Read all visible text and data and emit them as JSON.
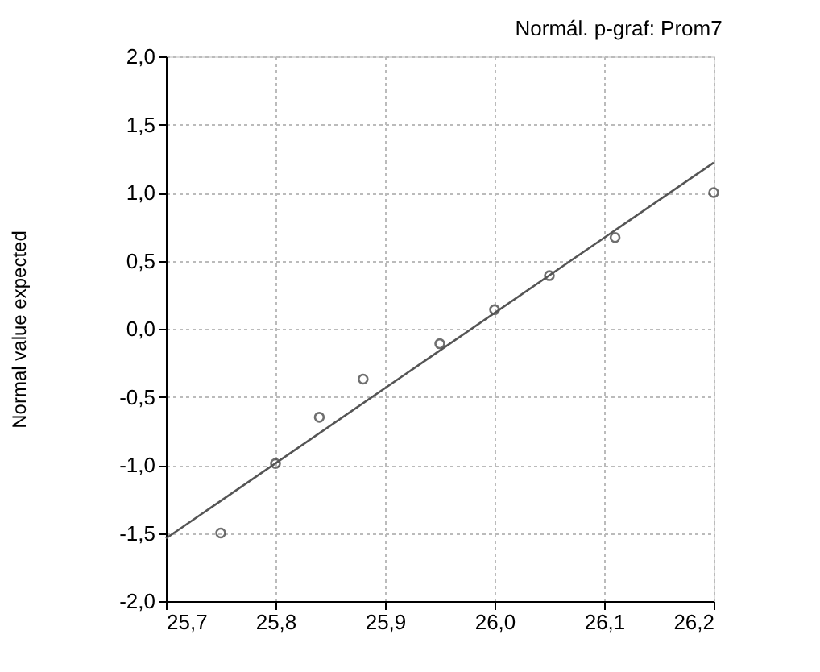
{
  "chart_data": {
    "type": "scatter",
    "title": "Normál. p-graf: Prom7",
    "ylabel": "Normal value expected",
    "x": [
      25.75,
      25.8,
      25.84,
      25.88,
      25.95,
      26.0,
      26.05,
      26.11,
      26.2
    ],
    "series": [
      {
        "color": "#333333",
        "marker": "circle",
        "values": [
          -1.5,
          -0.99,
          -0.65,
          -0.37,
          -0.11,
          0.14,
          0.39,
          0.67,
          1.0
        ]
      },
      {
        "type": "line",
        "color": "#555555",
        "line_style": "solid",
        "x": [
          25.7,
          26.2
        ],
        "values": [
          -1.54,
          1.22
        ]
      }
    ],
    "xlim": [
      25.7,
      26.2
    ],
    "xticks": [
      {
        "value": 25.7,
        "label": "25,7"
      },
      {
        "value": 25.8,
        "label": "25,8"
      },
      {
        "value": 25.9,
        "label": "25,9"
      },
      {
        "value": 26.0,
        "label": "26,0"
      },
      {
        "value": 26.1,
        "label": "26,1"
      },
      {
        "value": 26.2,
        "label": "26,2"
      }
    ],
    "ylim": [
      -2.0,
      2.0
    ],
    "yticks": [
      {
        "value": -2.0,
        "label": "-2,0"
      },
      {
        "value": -1.5,
        "label": "-1,5"
      },
      {
        "value": -1.0,
        "label": "-1,0"
      },
      {
        "value": -0.5,
        "label": "-0,5"
      },
      {
        "value": 0.0,
        "label": "0,0"
      },
      {
        "value": 0.5,
        "label": "0,5"
      },
      {
        "value": 1.0,
        "label": "1,0"
      },
      {
        "value": 1.5,
        "label": "1,5"
      },
      {
        "value": 2.0,
        "label": "2,0"
      }
    ],
    "grid": true
  }
}
